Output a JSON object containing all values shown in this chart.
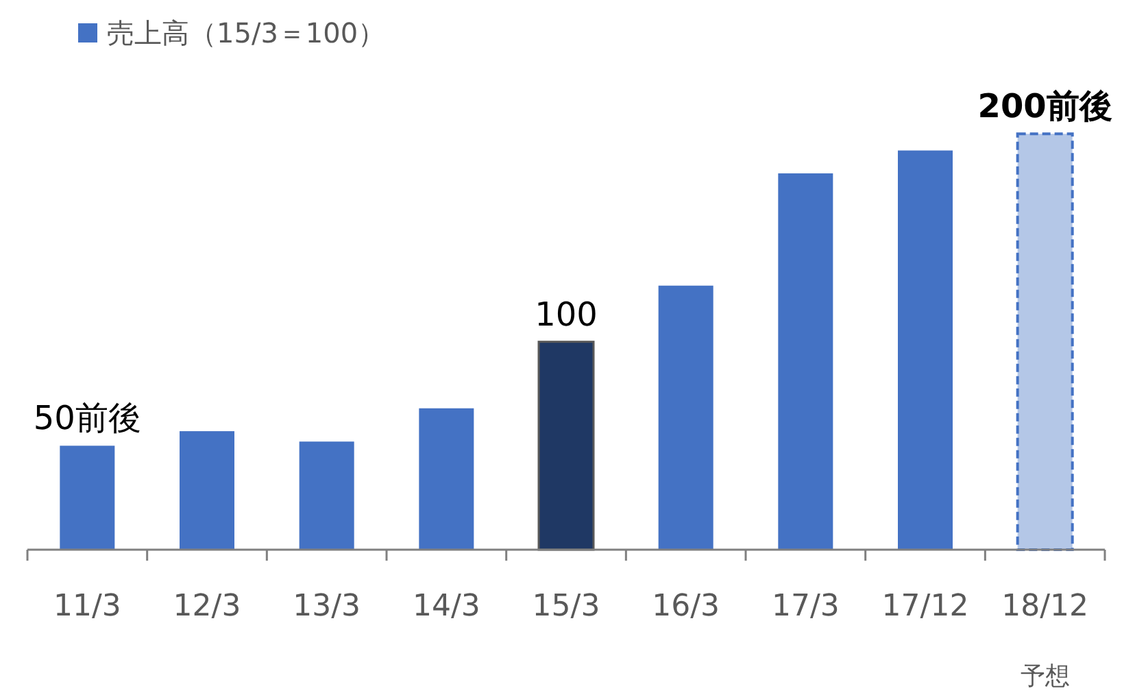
{
  "chart_data": {
    "type": "bar",
    "legend": "top left",
    "categories": [
      "11/3",
      "12/3",
      "13/3",
      "14/3",
      "15/3",
      "16/3",
      "17/3",
      "17/12",
      "18/12"
    ],
    "annotations": [
      "予想"
    ],
    "series": [
      {
        "name": "売上高（15/3＝100）",
        "color": "#4472c4",
        "colors": [
          "#4472c4",
          "#4472c4",
          "#4472c4",
          "#4472c4",
          "#1f3864",
          "#4472c4",
          "#4472c4",
          "#4472c4",
          "#b4c7e7"
        ],
        "values": [
          50,
          57,
          52,
          68,
          100,
          127,
          181,
          192,
          200
        ],
        "value_labels": [
          "50前後",
          null,
          null,
          null,
          "100",
          null,
          null,
          null,
          "200前後"
        ]
      }
    ]
  }
}
